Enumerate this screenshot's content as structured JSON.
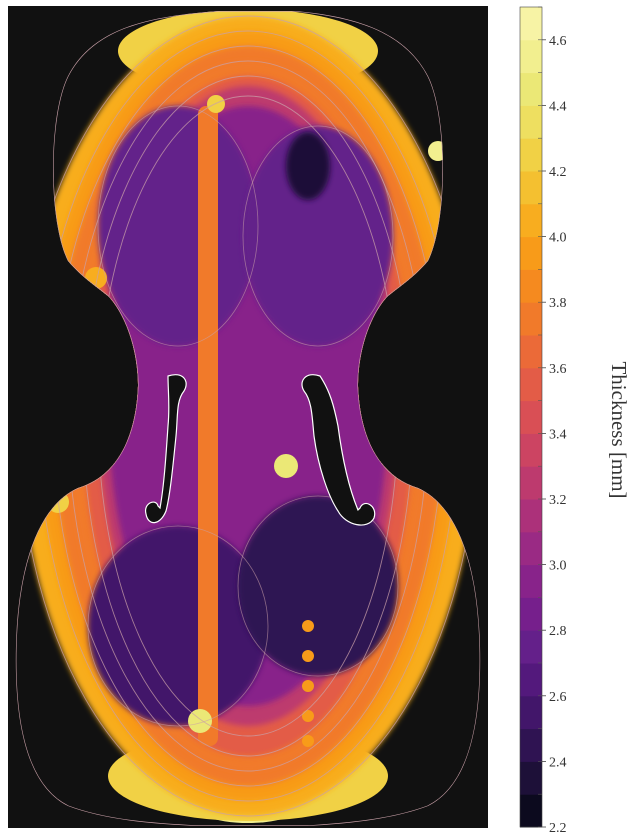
{
  "chart_data": {
    "type": "heatmap",
    "subject": "violin top plate",
    "colorbar": {
      "label": "Thickness [mm]",
      "min": 2.2,
      "max": 4.7,
      "step": 0.1,
      "ticks": [
        "2.2",
        "2.4",
        "2.6",
        "2.8",
        "3.0",
        "3.2",
        "3.4",
        "3.6",
        "3.8",
        "4.0",
        "4.2",
        "4.4",
        "4.6"
      ]
    },
    "regions": [
      {
        "value": 4.6
      },
      {
        "value": 4.6
      },
      {
        "value": 4.2
      },
      {
        "value": 4.2
      },
      {
        "value": 4.1
      },
      {
        "value": 3.9
      },
      {
        "value": 3.8
      },
      {
        "value": 3.7
      },
      {
        "value": 3.6
      },
      {
        "value": 3.2
      },
      {
        "value": 3.0
      },
      {
        "value": 2.8
      },
      {
        "value": 2.7
      },
      {
        "value": 2.6
      },
      {
        "value": 2.5
      },
      {
        "value": 2.4
      },
      {
        "value": 3.8
      },
      {
        "value": 4.2
      },
      {
        "value": 4.0
      },
      {
        "value": 4.2
      },
      {
        "value": 4.4
      },
      {
        "value": 4.4
      },
      {
        "value": 4.5
      },
      {
        "value": 3.9
      },
      {
        "value": 3.9
      },
      {
        "value": 3.9
      },
      {
        "value": 3.9
      },
      {
        "value": 3.9
      }
    ],
    "contour_color": "#c9a0a8",
    "background": "#111111",
    "colormap": [
      "#0c0a1e",
      "#1d1038",
      "#2f1352",
      "#42166a",
      "#53197c",
      "#64208a",
      "#761f8c",
      "#88238a",
      "#9a2a84",
      "#ac317a",
      "#bd3a6e",
      "#cc4462",
      "#d94f55",
      "#e35c47",
      "#eb6a38",
      "#f17a2a",
      "#f58a1f",
      "#f89b19",
      "#f8ad1f",
      "#f4c030",
      "#f1d145",
      "#eedf60",
      "#ebe876",
      "#f2ef8f",
      "#f7f3a5"
    ]
  }
}
